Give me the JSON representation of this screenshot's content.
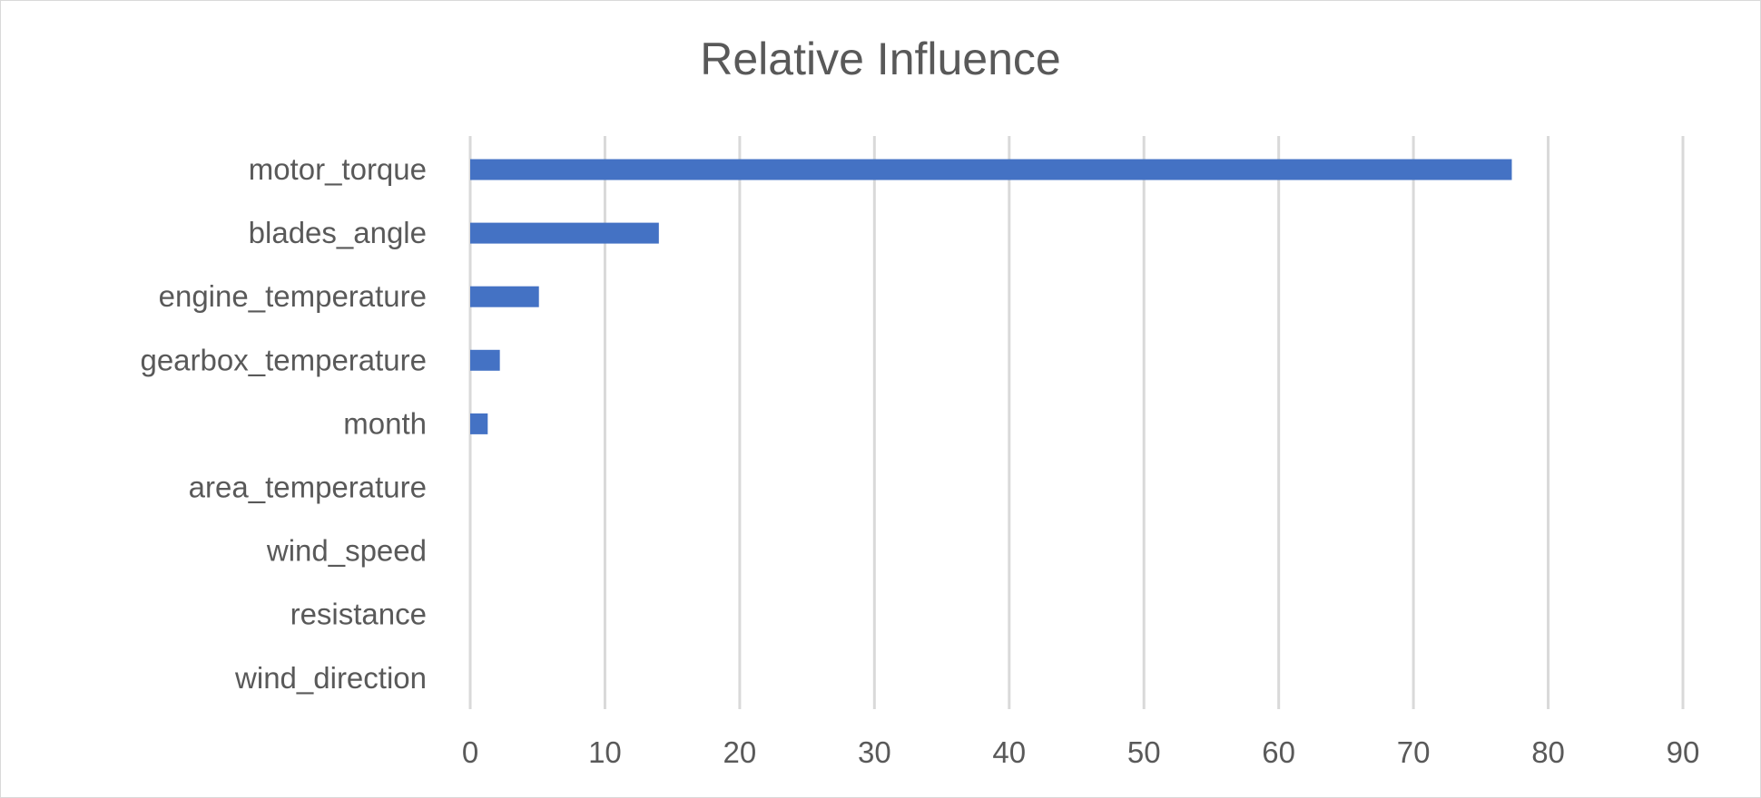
{
  "chart_data": {
    "type": "bar",
    "orientation": "horizontal",
    "title": "Relative Influence",
    "xlabel": "",
    "ylabel": "",
    "categories": [
      "motor_torque",
      "blades_angle",
      "engine_temperature",
      "gearbox_temperature",
      "month",
      "area_temperature",
      "wind_speed",
      "resistance",
      "wind_direction"
    ],
    "values": [
      77.3,
      14.0,
      5.1,
      2.2,
      1.3,
      0,
      0,
      0,
      0
    ],
    "xlim": [
      0,
      90
    ],
    "xticks": [
      0,
      10,
      20,
      30,
      40,
      50,
      60,
      70,
      80,
      90
    ],
    "grid": "vertical",
    "legend": "none",
    "colors": {
      "bar": "#4472c4",
      "grid": "#d9d9d9",
      "text": "#595959"
    }
  }
}
